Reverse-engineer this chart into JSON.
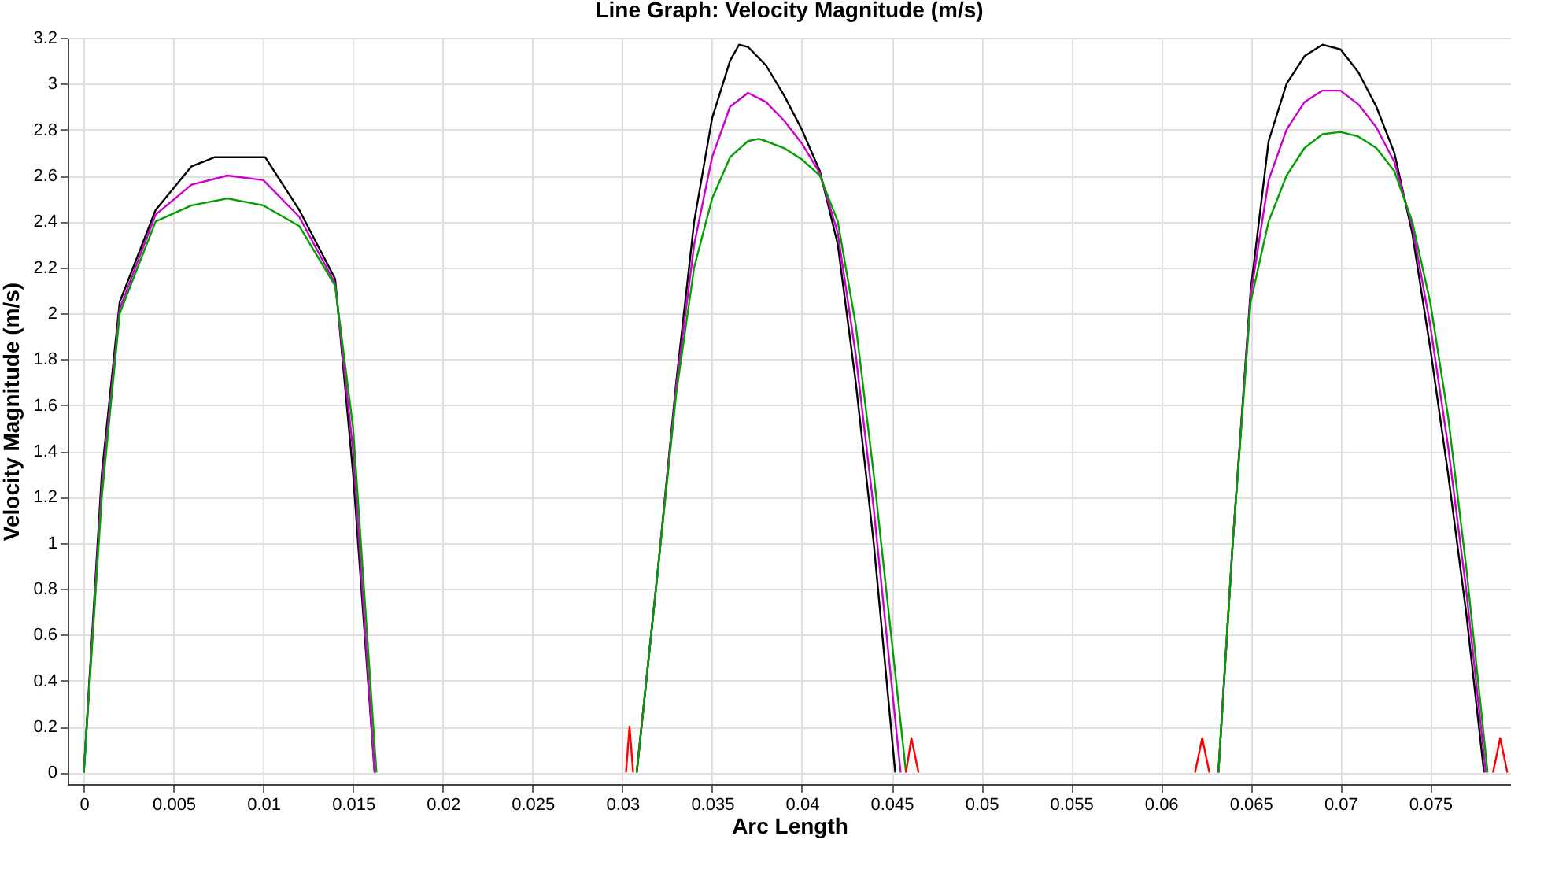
{
  "chart_data": {
    "type": "line",
    "title": "Line Graph: Velocity Magnitude (m/s)",
    "xlabel": "Arc Length",
    "ylabel": "Velocity Magnitude (m/s)",
    "xlim": [
      -0.0009,
      0.0795
    ],
    "ylim": [
      -0.05,
      3.2
    ],
    "xticks": [
      0,
      0.005,
      0.01,
      0.015,
      0.02,
      0.025,
      0.03,
      0.035,
      0.04,
      0.045,
      0.05,
      0.055,
      0.06,
      0.065,
      0.07,
      0.075
    ],
    "yticks": [
      0,
      0.2,
      0.4,
      0.6,
      0.8,
      1,
      1.2,
      1.4,
      1.6,
      1.8,
      2,
      2.2,
      2.4,
      2.6,
      2.8,
      3,
      3.2
    ],
    "grid": true,
    "legend": false,
    "line_style": "solid",
    "series": [
      {
        "color": "#000000",
        "x": [
          0,
          0.001,
          0.002,
          0.004,
          0.006,
          0.0073,
          0.0101,
          0.012,
          0.014,
          0.015,
          0.0162,
          0.023,
          0.0308,
          0.032,
          0.033,
          0.034,
          0.035,
          0.036,
          0.0365,
          0.037,
          0.038,
          0.039,
          0.04,
          0.041,
          0.042,
          0.043,
          0.044,
          0.0452,
          0.055,
          0.0632,
          0.064,
          0.065,
          0.066,
          0.067,
          0.068,
          0.069,
          0.07,
          0.071,
          0.072,
          0.073,
          0.074,
          0.075,
          0.076,
          0.077,
          0.078
        ],
        "values": [
          0,
          1.3,
          2.05,
          2.45,
          2.64,
          2.68,
          2.68,
          2.45,
          2.15,
          1.3,
          0,
          null,
          0,
          0.9,
          1.7,
          2.4,
          2.85,
          3.1,
          3.17,
          3.16,
          3.08,
          2.95,
          2.8,
          2.62,
          2.3,
          1.7,
          1,
          0,
          null,
          0,
          1,
          2.1,
          2.75,
          3,
          3.12,
          3.17,
          3.15,
          3.05,
          2.9,
          2.7,
          2.35,
          1.85,
          1.3,
          0.7,
          0
        ]
      },
      {
        "color": "#cc00cc",
        "x": [
          0,
          0.001,
          0.002,
          0.004,
          0.006,
          0.008,
          0.01,
          0.012,
          0.014,
          0.015,
          0.0162,
          0.023,
          0.0308,
          0.032,
          0.033,
          0.034,
          0.035,
          0.036,
          0.037,
          0.038,
          0.039,
          0.04,
          0.041,
          0.042,
          0.043,
          0.044,
          0.0455,
          0.055,
          0.0632,
          0.064,
          0.065,
          0.066,
          0.067,
          0.068,
          0.069,
          0.07,
          0.071,
          0.072,
          0.073,
          0.074,
          0.075,
          0.076,
          0.077,
          0.0781
        ],
        "values": [
          0,
          1.25,
          2.02,
          2.43,
          2.56,
          2.6,
          2.58,
          2.42,
          2.13,
          1.4,
          0,
          null,
          0,
          0.9,
          1.68,
          2.3,
          2.68,
          2.9,
          2.96,
          2.92,
          2.84,
          2.74,
          2.61,
          2.35,
          1.82,
          1.15,
          0,
          null,
          0,
          1,
          2.08,
          2.58,
          2.8,
          2.92,
          2.97,
          2.97,
          2.91,
          2.81,
          2.66,
          2.38,
          1.95,
          1.42,
          0.8,
          0
        ]
      },
      {
        "color": "#00a000",
        "x": [
          0,
          0.001,
          0.002,
          0.004,
          0.006,
          0.008,
          0.01,
          0.012,
          0.014,
          0.015,
          0.0163,
          0.023,
          0.0308,
          0.032,
          0.033,
          0.034,
          0.035,
          0.036,
          0.037,
          0.0376,
          0.038,
          0.039,
          0.04,
          0.041,
          0.042,
          0.043,
          0.044,
          0.0458,
          0.055,
          0.0632,
          0.064,
          0.065,
          0.066,
          0.067,
          0.068,
          0.069,
          0.07,
          0.071,
          0.072,
          0.073,
          0.074,
          0.075,
          0.076,
          0.077,
          0.0782
        ],
        "values": [
          0,
          1.2,
          2,
          2.4,
          2.47,
          2.5,
          2.47,
          2.38,
          2.12,
          1.5,
          0,
          null,
          0,
          0.9,
          1.65,
          2.2,
          2.5,
          2.68,
          2.75,
          2.76,
          2.75,
          2.72,
          2.67,
          2.6,
          2.4,
          1.95,
          1.3,
          0,
          null,
          0,
          1,
          2.05,
          2.4,
          2.6,
          2.72,
          2.78,
          2.79,
          2.77,
          2.72,
          2.62,
          2.4,
          2.05,
          1.55,
          0.9,
          0
        ]
      },
      {
        "color": "#ff0000",
        "x": [
          0.0302,
          0.0304,
          0.0306,
          0.038,
          0.0458,
          0.0461,
          0.0465,
          0.054,
          0.0619,
          0.0623,
          0.0627,
          0.07,
          0.0785,
          0.0789,
          0.0793
        ],
        "values": [
          0,
          0.2,
          0,
          null,
          0,
          0.15,
          0,
          null,
          0,
          0.15,
          0,
          null,
          0,
          0.15,
          0
        ]
      }
    ]
  }
}
